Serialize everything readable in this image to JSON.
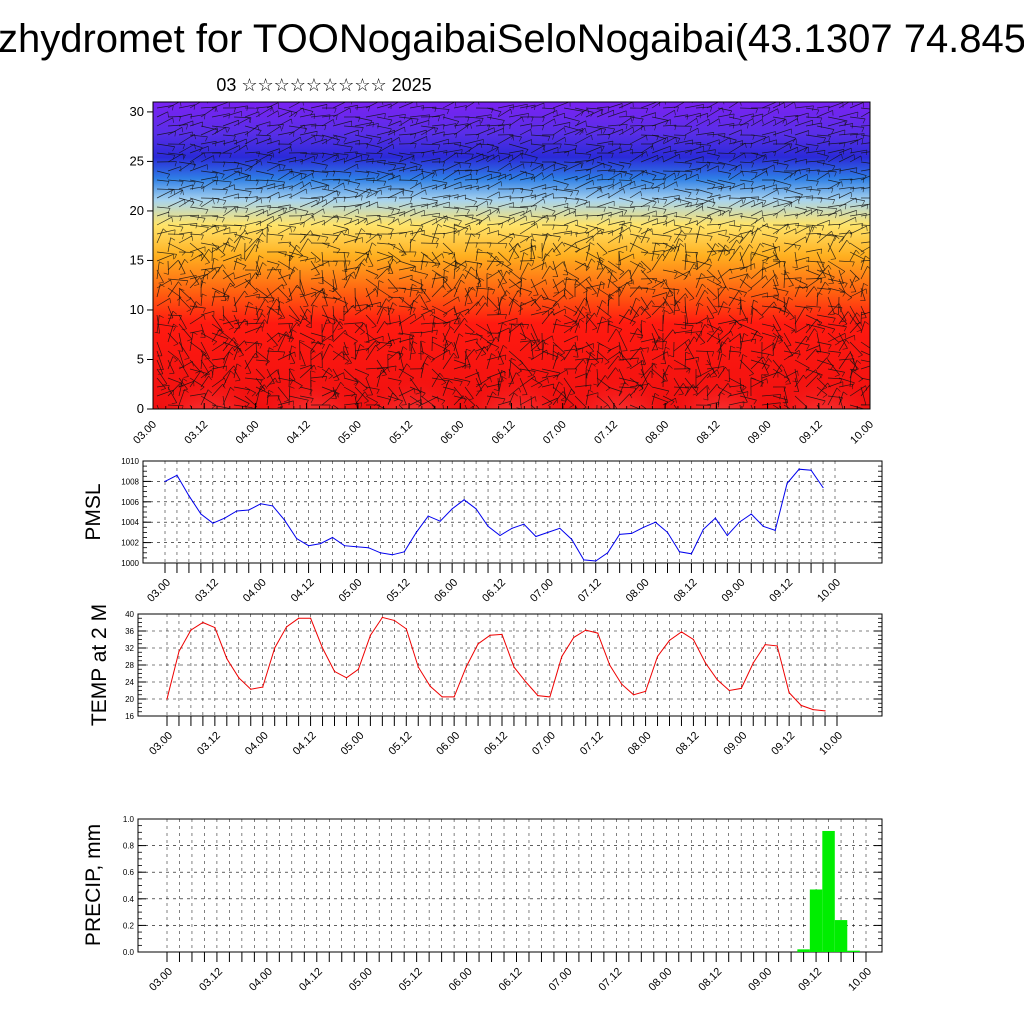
{
  "figure": {
    "title": "zhydromet for TOONogaibaiSeloNogaibai(43.1307 74.845",
    "subtitle": "03 ☆☆☆☆☆☆☆☆☆ 2025"
  },
  "x_ticks": [
    "03.00",
    "03.12",
    "04.00",
    "04.12",
    "05.00",
    "05.12",
    "06.00",
    "06.12",
    "07.00",
    "07.12",
    "08.00",
    "08.12",
    "09.00",
    "09.12",
    "10.00"
  ],
  "chart_data": [
    {
      "type": "heatmap",
      "name": "cross-section",
      "xlabel": "",
      "ylabel": "",
      "ylim": [
        0,
        31
      ],
      "y_ticks": [
        "0",
        "5",
        "10",
        "15",
        "20",
        "25",
        "30"
      ],
      "overlay": "wind barbs",
      "color_scale_top_to_bottom": [
        "purple",
        "blue",
        "light blue",
        "yellow",
        "orange",
        "red"
      ]
    },
    {
      "type": "line",
      "ylabel": "PMSL",
      "ylim": [
        1000,
        1010
      ],
      "y_ticks": [
        "1000",
        "1002",
        "1004",
        "1006",
        "1008",
        "1010"
      ],
      "color": "#0000ee",
      "x_hours": [
        0,
        3,
        6,
        9,
        12,
        15,
        18,
        21,
        24,
        27,
        30,
        33,
        36,
        39,
        42,
        45,
        48,
        51,
        54,
        57,
        60,
        63,
        66,
        69,
        72,
        75,
        78,
        81,
        84,
        87,
        90,
        93,
        96,
        99,
        102,
        105,
        108,
        111,
        114,
        117,
        120,
        123,
        126,
        129,
        132,
        135,
        138,
        141,
        144,
        147,
        150,
        153,
        156,
        159,
        162,
        165
      ],
      "values": [
        1008.0,
        1008.6,
        1006.6,
        1004.8,
        1003.9,
        1004.4,
        1005.1,
        1005.2,
        1005.8,
        1005.6,
        1004.2,
        1002.4,
        1001.7,
        1001.9,
        1002.5,
        1001.7,
        1001.6,
        1001.5,
        1001.0,
        1000.8,
        1001.1,
        1003.0,
        1004.6,
        1004.1,
        1005.3,
        1006.2,
        1005.3,
        1003.6,
        1002.7,
        1003.4,
        1003.8,
        1002.6,
        1003.0,
        1003.4,
        1002.3,
        1000.3,
        1000.2,
        1001.0,
        1002.8,
        1002.9,
        1003.5,
        1004.0,
        1003.0,
        1001.1,
        1000.9,
        1003.3,
        1004.4,
        1002.7,
        1004.0,
        1004.8,
        1003.6,
        1003.2,
        1007.8,
        1009.2,
        1009.1,
        1007.4
      ]
    },
    {
      "type": "line",
      "ylabel": "TEMP at 2 M",
      "ylim": [
        16,
        40
      ],
      "y_ticks": [
        "16",
        "20",
        "24",
        "28",
        "32",
        "36",
        "40"
      ],
      "color": "#ee0000",
      "x_hours": [
        0,
        3,
        6,
        9,
        12,
        15,
        18,
        21,
        24,
        27,
        30,
        33,
        36,
        39,
        42,
        45,
        48,
        51,
        54,
        57,
        60,
        63,
        66,
        69,
        72,
        75,
        78,
        81,
        84,
        87,
        90,
        93,
        96,
        99,
        102,
        105,
        108,
        111,
        114,
        117,
        120,
        123,
        126,
        129,
        132,
        135,
        138,
        141,
        144,
        147,
        150,
        153,
        156,
        159,
        162,
        165
      ],
      "values": [
        20.0,
        31.2,
        36.2,
        38.0,
        36.8,
        29.5,
        25.0,
        22.3,
        22.8,
        32.0,
        37.0,
        39.0,
        39.0,
        32.0,
        26.5,
        25.0,
        27.0,
        35.0,
        39.2,
        38.5,
        36.5,
        27.5,
        23.0,
        20.5,
        20.5,
        27.5,
        33.0,
        35.0,
        35.2,
        27.5,
        24.0,
        20.8,
        20.5,
        30.0,
        34.5,
        36.2,
        35.5,
        28.0,
        23.5,
        21.0,
        21.8,
        30.0,
        33.8,
        35.8,
        34.0,
        28.5,
        24.5,
        22.0,
        22.5,
        28.5,
        32.8,
        32.5,
        21.5,
        18.5,
        17.5,
        17.2
      ]
    },
    {
      "type": "bar",
      "ylabel": "PRECIP, mm",
      "ylim": [
        0,
        1.0
      ],
      "y_ticks": [
        "0.0",
        "0.2",
        "0.4",
        "0.6",
        "0.8",
        "1.0"
      ],
      "color": "#00ee00",
      "x_hours": [
        153,
        156,
        159,
        162,
        165
      ],
      "values": [
        0.02,
        0.47,
        0.91,
        0.24,
        0.01
      ]
    }
  ]
}
